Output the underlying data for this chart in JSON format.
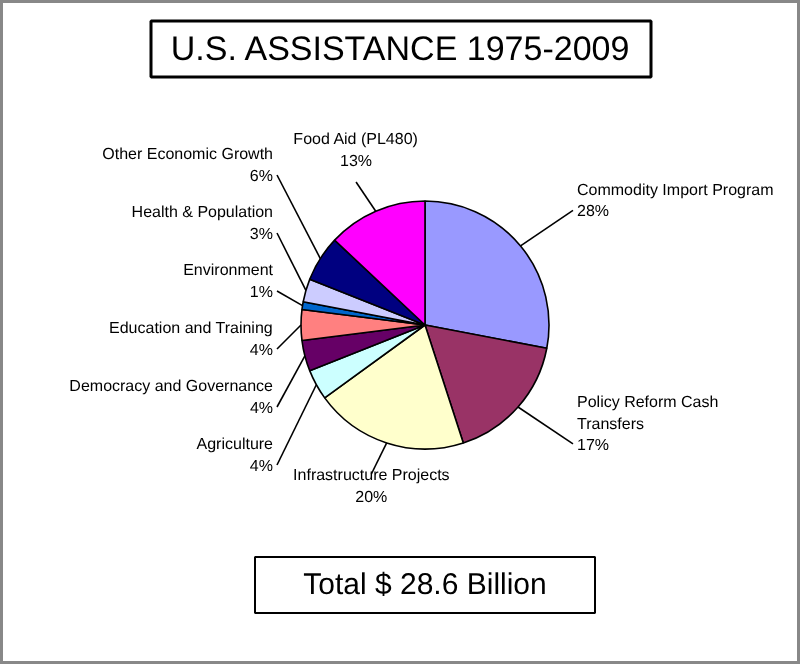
{
  "chart_data": {
    "type": "pie",
    "title": "U.S. ASSISTANCE 1975-2009",
    "categories": [
      "Commodity Import Program",
      "Policy Reform Cash Transfers",
      "Infrastructure Projects",
      "Agriculture",
      "Democracy and Governance",
      "Education and Training",
      "Environment",
      "Health & Population",
      "Other Economic Growth",
      "Food Aid (PL480)"
    ],
    "values": [
      28,
      17,
      20,
      4,
      4,
      4,
      1,
      3,
      6,
      13
    ],
    "value_labels": [
      "28%",
      "17%",
      "20%",
      "4%",
      "4%",
      "4%",
      "1%",
      "3%",
      "6%",
      "13%"
    ],
    "colors": [
      "#9999ff",
      "#993366",
      "#ffffcc",
      "#ccffff",
      "#660066",
      "#ff8080",
      "#0066cc",
      "#ccccff",
      "#000080",
      "#ff00ff"
    ],
    "annotations": [
      "Total $ 28.6 Billion"
    ]
  }
}
